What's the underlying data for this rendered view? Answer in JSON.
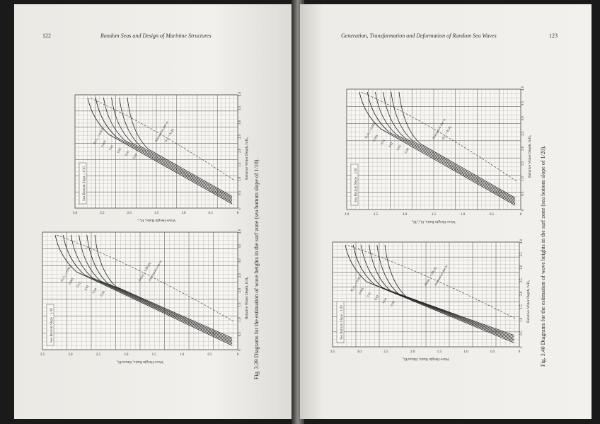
{
  "left_page": {
    "page_number": "122",
    "running_header": "Random Seas and Design of Maritime Structures",
    "caption": "Fig. 3.39   Diagrams for the estimation of wave heights in the surf zone (sea bottom slope of 1/10).",
    "chart_top": {
      "slope_label": "Sea Bottom Slope : 1/10",
      "ylabel": "Wave Height Ratio, H₁/₃",
      "xlabel": "Relative Water Depth, h/H₀",
      "x_ticks": [
        "0",
        "0.5",
        "1.0",
        "1.5",
        "2.0",
        "2.5",
        "3.0",
        "3.5",
        "4.0"
      ],
      "y_ticks": [
        "0",
        "0.5",
        "1.0",
        "1.5",
        "2.0",
        "2.5",
        "3.0"
      ],
      "curve_labels": [
        "H₀/L₀ = 0.002",
        "0.005",
        "0.01",
        "0.02",
        "0.05",
        "0.08"
      ],
      "annotations": [
        "Attenuation due to",
        "H₁/₃ = K₀H₀"
      ]
    },
    "chart_bottom": {
      "slope_label": "Sea Bottom Slope : 1/10",
      "ylabel": "Wave Height Ratio, Hmax/H₀",
      "xlabel": "Relative Water Depth, h/H₀",
      "x_ticks": [
        "0",
        "0.5",
        "1.0",
        "1.5",
        "2.0",
        "2.5",
        "3.0",
        "3.5",
        "4.0"
      ],
      "y_ticks": [
        "0",
        "0.5",
        "1.0",
        "1.5",
        "2.0",
        "2.5",
        "3.0",
        "3.5"
      ],
      "curve_labels": [
        "H₀/L₀ = 0.002",
        "0.005",
        "0.01",
        "0.02",
        "0.04",
        "0.08"
      ],
      "annotations": [
        "Hmax = 1.8K₀H₀",
        "Attenuation due to"
      ]
    }
  },
  "right_page": {
    "page_number": "123",
    "running_header": "Generation, Transformation and Deformation of Random Sea Waves",
    "caption": "Fig. 3.40   Diagrams for the estimation of wave heights in the surf zone (sea bottom slope of 1/20).",
    "chart_top": {
      "slope_label": "Sea Bottom Slope : 1/20",
      "ylabel": "Wave Height Ratio, H₁/₃/H₀",
      "xlabel": "Relative Water Depth, h/H₀",
      "x_ticks": [
        "0",
        "0.5",
        "1.0",
        "1.5",
        "2.0",
        "2.5",
        "3.0",
        "3.5",
        "4.0"
      ],
      "y_ticks": [
        "0",
        "0.5",
        "1.0",
        "1.5",
        "2.0",
        "2.5",
        "3.0"
      ],
      "curve_labels": [
        "H₀/L₀ = 0.002",
        "0.005",
        "0.01",
        "0.02",
        "0.05",
        "0.08"
      ],
      "annotations": [
        "Attenuation due to",
        "H₁/₃ = K₀H₀"
      ]
    },
    "chart_bottom": {
      "slope_label": "Sea Bottom Slope : 1/20",
      "ylabel": "Wave Height Ratio, Hmax/H₀",
      "xlabel": "Relative Water Depth, h/H₀",
      "x_ticks": [
        "0",
        "0.5",
        "1.0",
        "1.5",
        "2.0",
        "2.5",
        "3.0",
        "3.5",
        "4.0"
      ],
      "y_ticks": [
        "0",
        "0.5",
        "1.0",
        "1.5",
        "2.0",
        "2.5",
        "3.0",
        "3.5"
      ],
      "curve_labels": [
        "H₀/L₀ = 0.002",
        "0.005",
        "0.01",
        "0.02",
        "0.04",
        "0.08"
      ],
      "annotations": [
        "Hmax = 1.8K₀H₀",
        "Attenuation due to"
      ]
    }
  }
}
